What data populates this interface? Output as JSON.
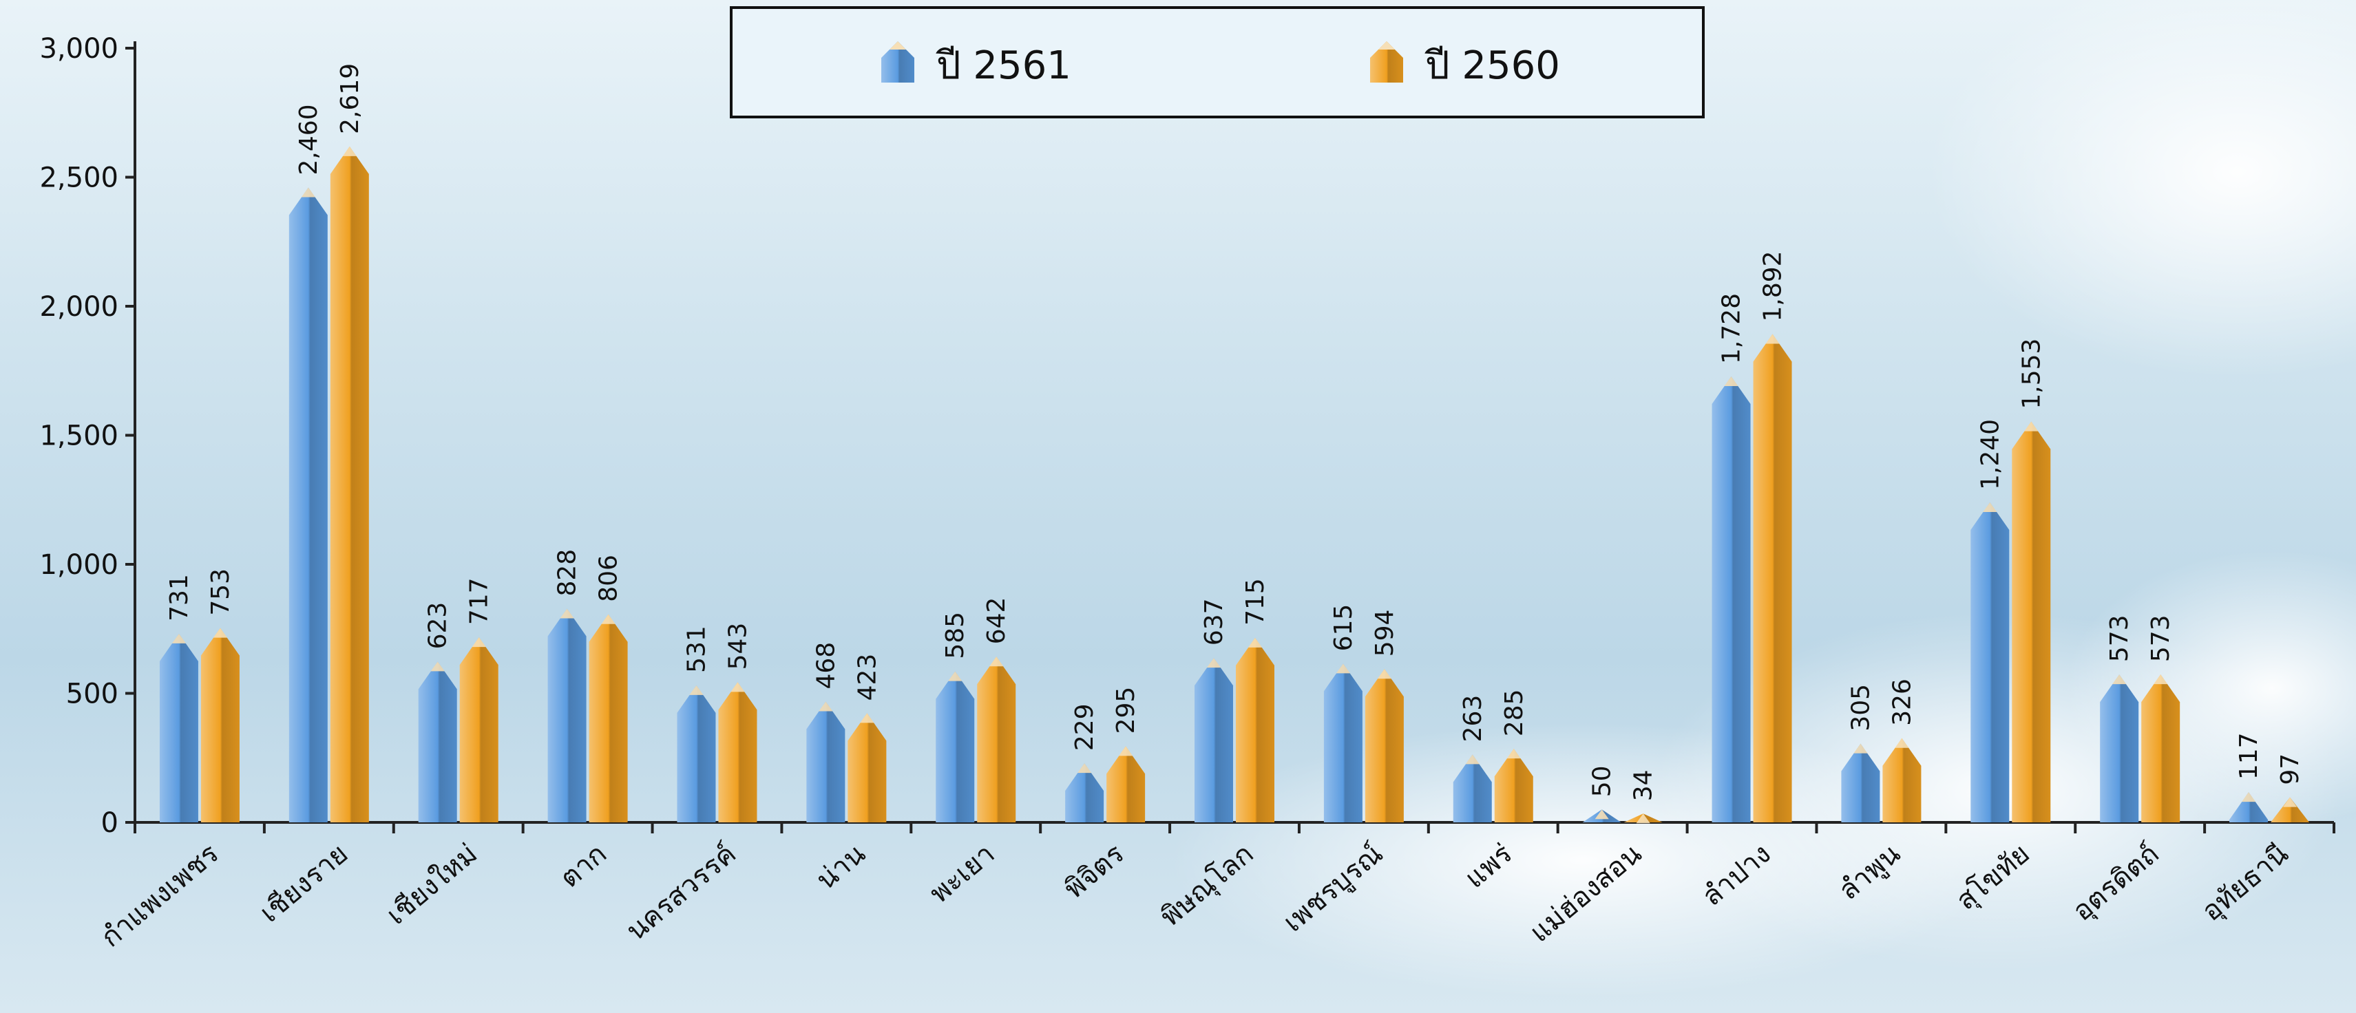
{
  "chart_data": {
    "type": "bar",
    "categories": [
      "กำแพงเพชร",
      "เชียงราย",
      "เชียงใหม่",
      "ตาก",
      "นครสวรรค์",
      "น่าน",
      "พะเยา",
      "พิจิตร",
      "พิษณุโลก",
      "เพชรบูรณ์",
      "แพร่",
      "แม่ฮ่องสอน",
      "ลำปาง",
      "ลำพูน",
      "สุโขทัย",
      "อุตรดิตถ์",
      "อุทัยธานี"
    ],
    "series": [
      {
        "name": "ปี 2561",
        "color": "#5a9be0",
        "values": [
          731,
          2460,
          623,
          828,
          531,
          468,
          585,
          229,
          637,
          615,
          263,
          50,
          1728,
          305,
          1240,
          573,
          117
        ],
        "value_labels": [
          "731",
          "2,460",
          "623",
          "828",
          "531",
          "468",
          "585",
          "229",
          "637",
          "615",
          "263",
          "50",
          "1,728",
          "305",
          "1,240",
          "573",
          "117"
        ]
      },
      {
        "name": "ปี 2560",
        "color": "#f0a020",
        "values": [
          753,
          2619,
          717,
          806,
          543,
          423,
          642,
          295,
          715,
          594,
          285,
          34,
          1892,
          326,
          1553,
          573,
          97
        ],
        "value_labels": [
          "753",
          "2,619",
          "717",
          "806",
          "543",
          "423",
          "642",
          "295",
          "715",
          "594",
          "285",
          "34",
          "1,892",
          "326",
          "1,553",
          "573",
          "97"
        ]
      }
    ],
    "ylim": [
      0,
      3000
    ],
    "yticks": [
      0,
      500,
      {
        "value": 1000,
        "label": "1,000"
      },
      {
        "value": 1500,
        "label": "1,500"
      },
      {
        "value": 2000,
        "label": "2,000"
      },
      {
        "value": 2500,
        "label": "2,500"
      },
      {
        "value": 3000,
        "label": "3,000"
      }
    ],
    "legend": "top"
  }
}
